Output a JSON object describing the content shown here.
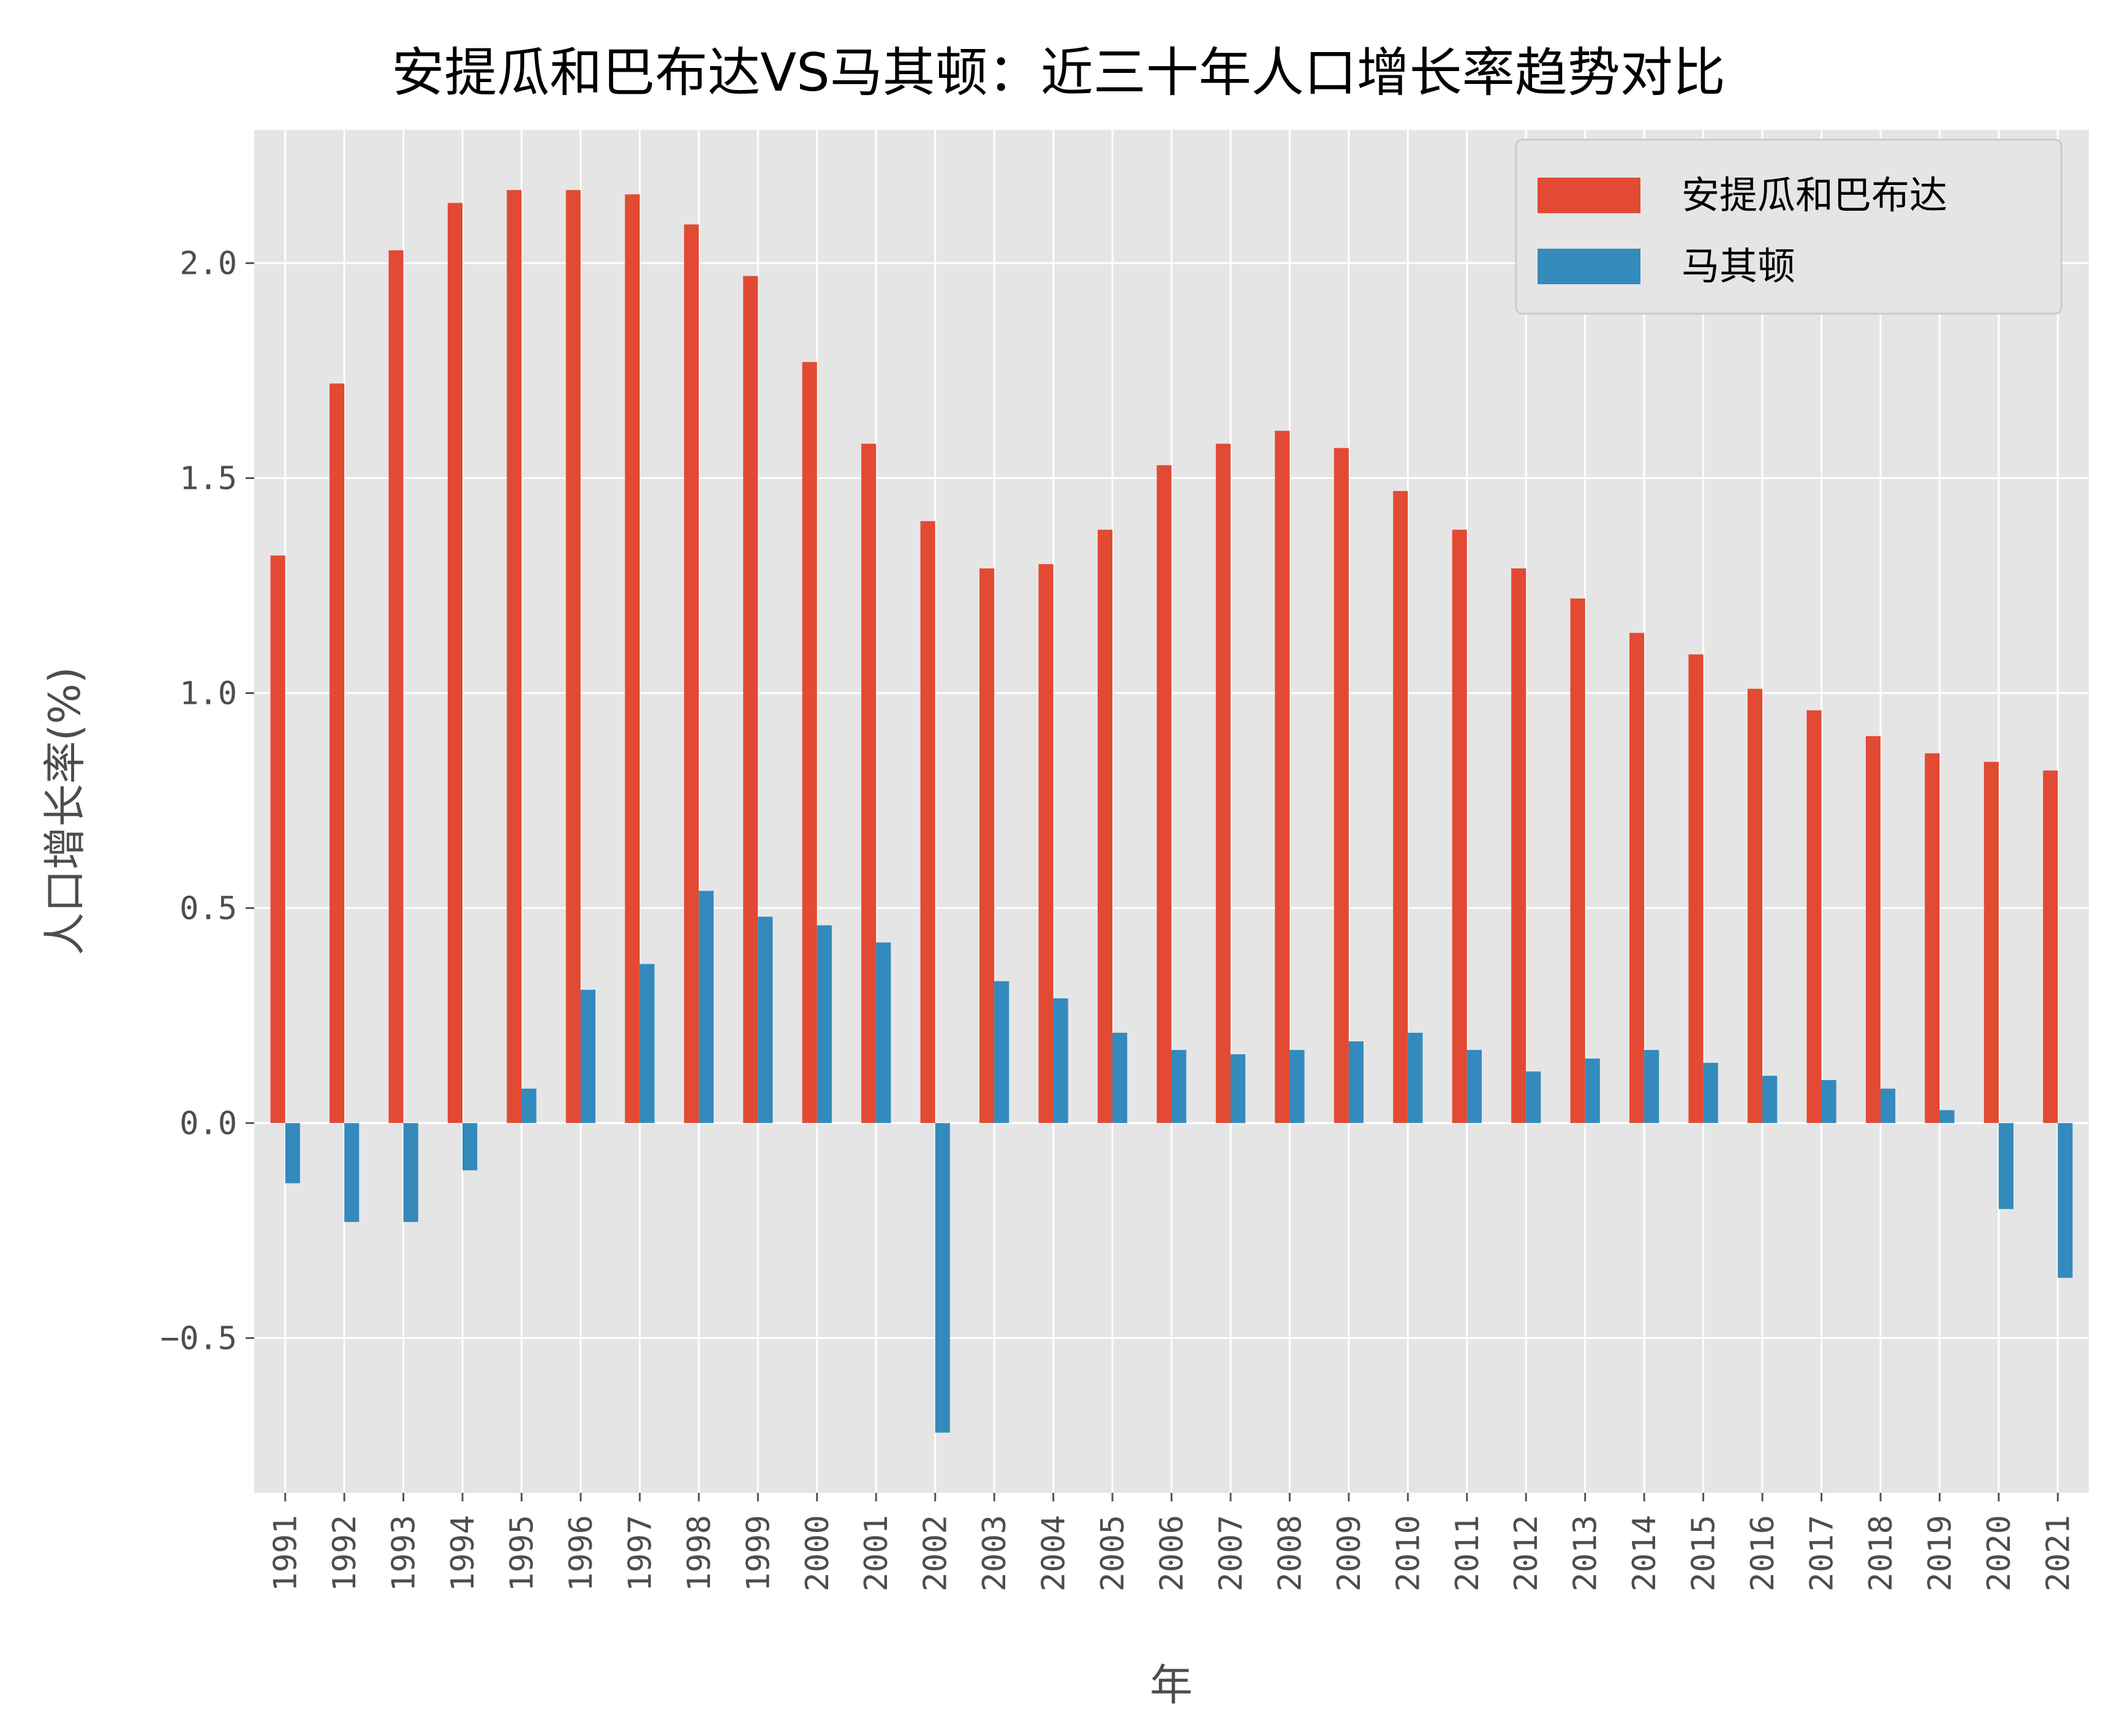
{
  "chart_data": {
    "type": "bar",
    "title": "安提瓜和巴布达VS马其顿：近三十年人口增长率趋势对比",
    "xlabel": "年",
    "ylabel": "人口增长率(%)",
    "categories": [
      "1991",
      "1992",
      "1993",
      "1994",
      "1995",
      "1996",
      "1997",
      "1998",
      "1999",
      "2000",
      "2001",
      "2002",
      "2003",
      "2004",
      "2005",
      "2006",
      "2007",
      "2008",
      "2009",
      "2010",
      "2011",
      "2012",
      "2013",
      "2014",
      "2015",
      "2016",
      "2017",
      "2018",
      "2019",
      "2020",
      "2021"
    ],
    "series": [
      {
        "name": "安提瓜和巴布达",
        "color": "#E24A33",
        "values": [
          1.32,
          1.72,
          2.03,
          2.14,
          2.17,
          2.17,
          2.16,
          2.09,
          1.97,
          1.77,
          1.58,
          1.4,
          1.29,
          1.3,
          1.38,
          1.53,
          1.58,
          1.61,
          1.57,
          1.47,
          1.38,
          1.29,
          1.22,
          1.14,
          1.09,
          1.01,
          0.96,
          0.9,
          0.86,
          0.84,
          0.82
        ]
      },
      {
        "name": "马其顿",
        "color": "#348ABD",
        "values": [
          -0.14,
          -0.23,
          -0.23,
          -0.11,
          0.08,
          0.31,
          0.37,
          0.54,
          0.48,
          0.46,
          0.42,
          -0.72,
          0.33,
          0.29,
          0.21,
          0.17,
          0.16,
          0.17,
          0.19,
          0.21,
          0.17,
          0.12,
          0.15,
          0.17,
          0.14,
          0.11,
          0.1,
          0.08,
          0.03,
          -0.2,
          -0.36
        ]
      }
    ],
    "yticks": [
      "−0.5",
      "0.0",
      "0.5",
      "1.0",
      "1.5",
      "2.0"
    ],
    "ytick_values": [
      -0.5,
      0.0,
      0.5,
      1.0,
      1.5,
      2.0
    ],
    "ylim": [
      -0.86,
      2.31
    ],
    "grid": true,
    "legend_position": "top-right",
    "background": "#E5E5E5"
  }
}
